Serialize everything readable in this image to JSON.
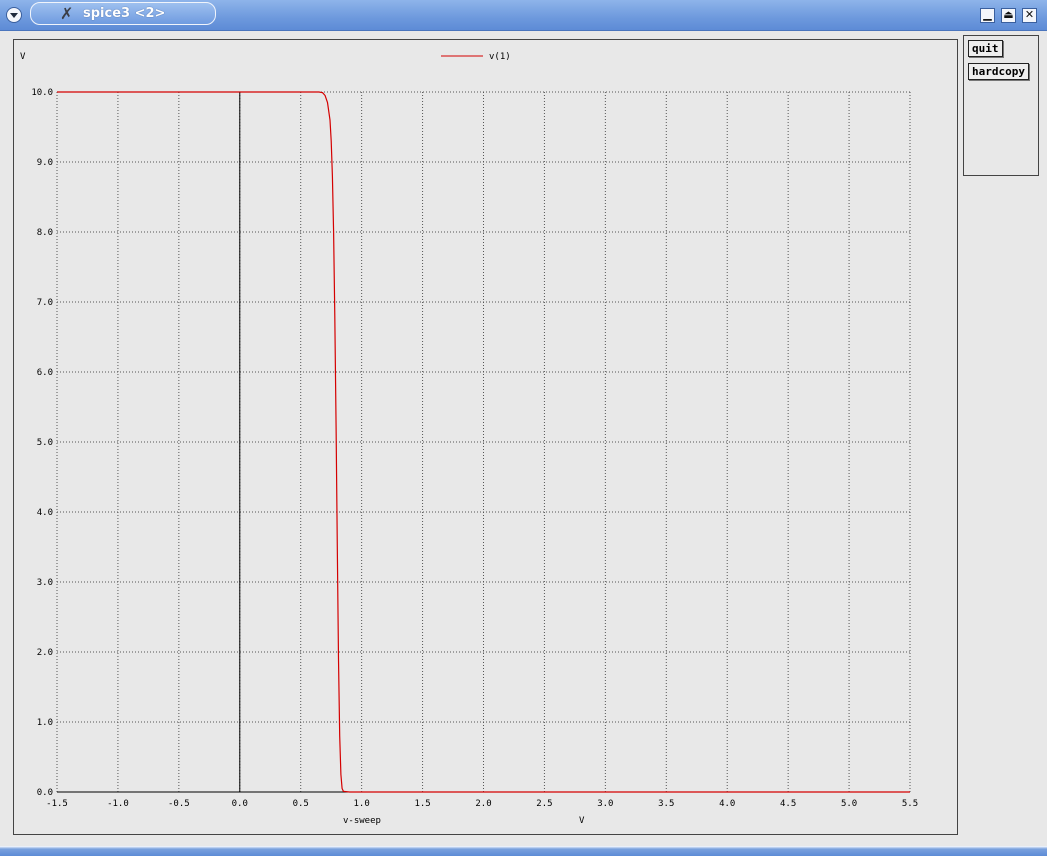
{
  "window": {
    "title": "spice3 <2>",
    "menu_icon": "chevron-down-icon",
    "app_icon": "x-logo-icon",
    "buttons": {
      "minimize": "▁",
      "maximize": "⏏",
      "close": "✕"
    }
  },
  "side_panel": {
    "quit_label": "quit",
    "hardcopy_label": "hardcopy"
  },
  "colors": {
    "trace": "#d40000",
    "grid": "#555555",
    "axis": "#000000"
  },
  "chart_data": {
    "type": "line",
    "ylabel": "V",
    "xlabel": "v-sweep",
    "xunit": "V",
    "xlim": [
      -1.5,
      5.5
    ],
    "ylim": [
      0.0,
      10.0
    ],
    "xticks": [
      "-1.5",
      "-1.0",
      "-0.5",
      "0.0",
      "0.5",
      "1.0",
      "1.5",
      "2.0",
      "2.5",
      "3.0",
      "3.5",
      "4.0",
      "4.5",
      "5.0",
      "5.5"
    ],
    "yticks": [
      "0.0",
      "1.0",
      "2.0",
      "3.0",
      "4.0",
      "5.0",
      "6.0",
      "7.0",
      "8.0",
      "9.0",
      "10.0"
    ],
    "grid": "dotted",
    "legend": "top-center",
    "series": [
      {
        "name": "v(1)",
        "x": [
          -1.5,
          0.0,
          0.6,
          0.65,
          0.68,
          0.7,
          0.72,
          0.74,
          0.75,
          0.76,
          0.77,
          0.78,
          0.79,
          0.8,
          0.81,
          0.82,
          0.83,
          0.84,
          0.85,
          0.9,
          1.0,
          5.5
        ],
        "y": [
          10.0,
          10.0,
          10.0,
          10.0,
          9.99,
          9.95,
          9.85,
          9.6,
          9.3,
          8.8,
          8.0,
          6.8,
          5.2,
          3.5,
          1.9,
          0.8,
          0.25,
          0.05,
          0.01,
          0.0,
          0.0,
          0.0
        ]
      }
    ]
  }
}
